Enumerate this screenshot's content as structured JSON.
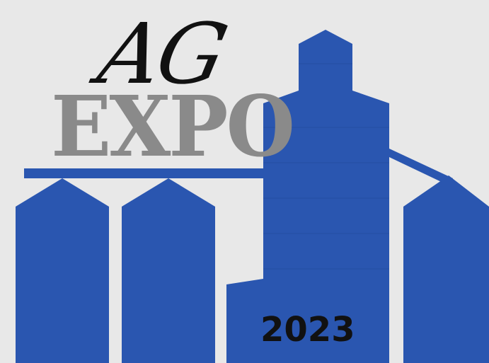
{
  "logo": {
    "line1": "AG",
    "line2": "EXPO",
    "year": "2023"
  },
  "colors": {
    "background": "#e8e8e8",
    "silo_blue": "#2a56b0",
    "title_dark": "#111111",
    "title_gray": "#8a8a8a"
  },
  "icons": {
    "graphic": "grain-silo-icon"
  }
}
